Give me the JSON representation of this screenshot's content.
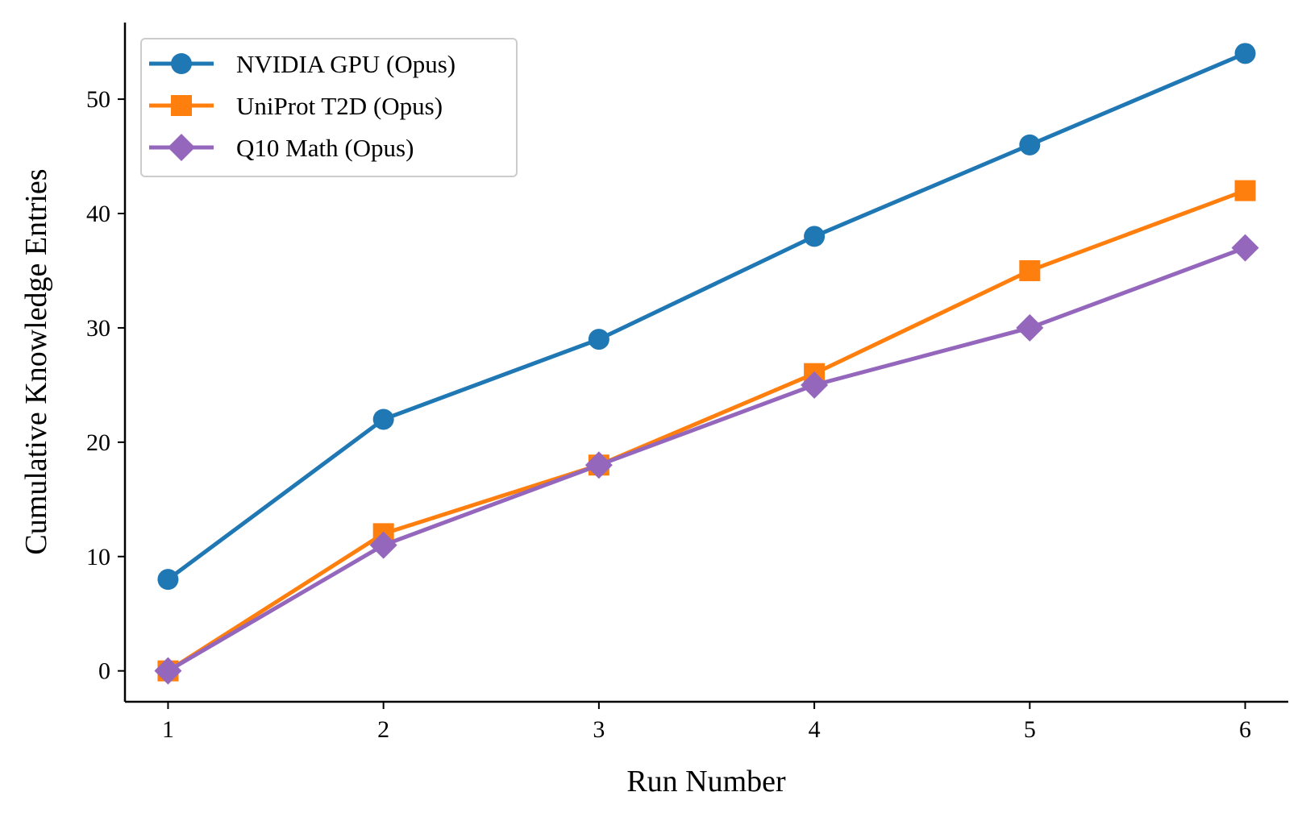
{
  "chart_data": {
    "type": "line",
    "title": "",
    "xlabel": "Run Number",
    "ylabel": "Cumulative Knowledge Entries",
    "x": [
      1,
      2,
      3,
      4,
      5,
      6
    ],
    "xticks": [
      "1",
      "2",
      "3",
      "4",
      "5",
      "6"
    ],
    "yticks": [
      "0",
      "10",
      "20",
      "30",
      "40",
      "50"
    ],
    "xlim": [
      0.8,
      6.2
    ],
    "ylim": [
      -2.7,
      56.7
    ],
    "grid": false,
    "legend_position": "top-left",
    "series": [
      {
        "name": "NVIDIA GPU (Opus)",
        "values": [
          8,
          22,
          29,
          38,
          46,
          54
        ],
        "color": "#1f77b4",
        "marker": "circle"
      },
      {
        "name": "UniProt T2D (Opus)",
        "values": [
          0,
          12,
          18,
          26,
          35,
          42
        ],
        "color": "#ff7f0e",
        "marker": "square"
      },
      {
        "name": "Q10 Math (Opus)",
        "values": [
          0,
          11,
          18,
          25,
          30,
          37
        ],
        "color": "#9467bd",
        "marker": "diamond"
      }
    ]
  }
}
